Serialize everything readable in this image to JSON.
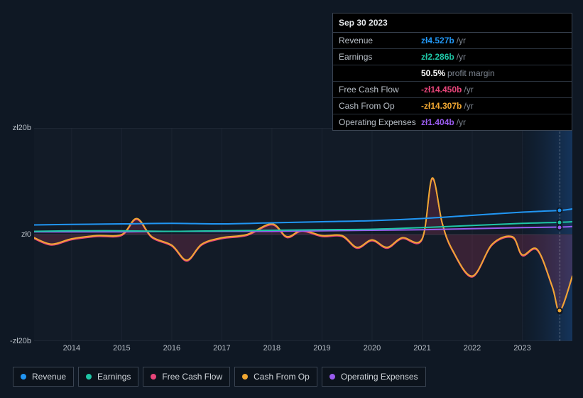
{
  "tooltip": {
    "date": "Sep 30 2023",
    "rows": [
      {
        "label": "Revenue",
        "value": "zł4.527b",
        "suffix": "/yr",
        "color": "#2196f3"
      },
      {
        "label": "Earnings",
        "value": "zł2.286b",
        "suffix": "/yr",
        "color": "#1fc6a6"
      },
      {
        "label": "",
        "value": "50.5%",
        "suffix": "profit margin",
        "color": "#ffffff"
      },
      {
        "label": "Free Cash Flow",
        "value": "-zł14.450b",
        "suffix": "/yr",
        "color": "#e8457a"
      },
      {
        "label": "Cash From Op",
        "value": "-zł14.307b",
        "suffix": "/yr",
        "color": "#f0a732"
      },
      {
        "label": "Operating Expenses",
        "value": "zł1.404b",
        "suffix": "/yr",
        "color": "#9a5cf0"
      }
    ]
  },
  "chart": {
    "type": "line-area",
    "background": "#0f1824",
    "plot_bg": "rgba(255,255,255,0.02)",
    "grid_color": "#2a3340",
    "axis_font_size": 11,
    "x": {
      "min": 2013.25,
      "max": 2024.0,
      "ticks": [
        2014,
        2015,
        2016,
        2017,
        2018,
        2019,
        2020,
        2021,
        2022,
        2023
      ]
    },
    "y": {
      "min": -20,
      "max": 20,
      "tick_positions": [
        -20,
        0,
        20
      ],
      "tick_labels": [
        "-zł20b",
        "zł0",
        "zł20b"
      ]
    },
    "highlight_band": {
      "from": 2023.0,
      "to": 2024.0
    },
    "marker_x": 2023.75,
    "series": [
      {
        "name": "Revenue",
        "color": "#2196f3",
        "line_width": 2,
        "fill_opacity": 0,
        "points": [
          [
            2013.25,
            1.8
          ],
          [
            2014,
            1.9
          ],
          [
            2015,
            2.0
          ],
          [
            2016,
            2.1
          ],
          [
            2017,
            2.0
          ],
          [
            2018,
            2.2
          ],
          [
            2019,
            2.4
          ],
          [
            2020,
            2.6
          ],
          [
            2021,
            3.0
          ],
          [
            2022,
            3.6
          ],
          [
            2023,
            4.2
          ],
          [
            2023.75,
            4.53
          ],
          [
            2024,
            4.8
          ]
        ]
      },
      {
        "name": "Earnings",
        "color": "#1fc6a6",
        "line_width": 2,
        "fill_opacity": 0,
        "points": [
          [
            2013.25,
            0.6
          ],
          [
            2014,
            0.7
          ],
          [
            2015,
            0.7
          ],
          [
            2016,
            0.6
          ],
          [
            2017,
            0.7
          ],
          [
            2018,
            0.8
          ],
          [
            2019,
            0.9
          ],
          [
            2020,
            1.0
          ],
          [
            2021,
            1.3
          ],
          [
            2022,
            1.7
          ],
          [
            2023,
            2.1
          ],
          [
            2023.75,
            2.29
          ],
          [
            2024,
            2.4
          ]
        ]
      },
      {
        "name": "Operating Expenses",
        "color": "#9a5cf0",
        "line_width": 2,
        "fill_opacity": 0,
        "points": [
          [
            2013.25,
            0.5
          ],
          [
            2014,
            0.5
          ],
          [
            2015,
            0.5
          ],
          [
            2016,
            0.6
          ],
          [
            2017,
            0.6
          ],
          [
            2018,
            0.6
          ],
          [
            2019,
            0.7
          ],
          [
            2020,
            0.8
          ],
          [
            2021,
            0.9
          ],
          [
            2022,
            1.1
          ],
          [
            2023,
            1.3
          ],
          [
            2023.75,
            1.4
          ],
          [
            2024,
            1.5
          ]
        ]
      },
      {
        "name": "Free Cash Flow",
        "color": "#e8457a",
        "line_width": 1.5,
        "fill_opacity": 0.18,
        "points": [
          [
            2013.25,
            -0.8
          ],
          [
            2013.6,
            -2.0
          ],
          [
            2014,
            -1.0
          ],
          [
            2014.5,
            -0.4
          ],
          [
            2015,
            -0.2
          ],
          [
            2015.3,
            2.8
          ],
          [
            2015.6,
            -0.6
          ],
          [
            2016,
            -2.2
          ],
          [
            2016.3,
            -5.0
          ],
          [
            2016.6,
            -2.0
          ],
          [
            2017,
            -0.8
          ],
          [
            2017.5,
            -0.2
          ],
          [
            2018,
            1.8
          ],
          [
            2018.3,
            -0.6
          ],
          [
            2018.6,
            0.6
          ],
          [
            2019,
            -0.4
          ],
          [
            2019.4,
            -0.4
          ],
          [
            2019.7,
            -2.6
          ],
          [
            2020,
            -1.2
          ],
          [
            2020.3,
            -2.6
          ],
          [
            2020.6,
            -0.8
          ],
          [
            2021,
            -1.0
          ],
          [
            2021.2,
            10.4
          ],
          [
            2021.4,
            2.0
          ],
          [
            2021.6,
            -3.0
          ],
          [
            2022,
            -8.0
          ],
          [
            2022.4,
            -2.0
          ],
          [
            2022.8,
            -0.6
          ],
          [
            2023,
            -4.0
          ],
          [
            2023.3,
            -3.0
          ],
          [
            2023.6,
            -10.0
          ],
          [
            2023.75,
            -14.45
          ],
          [
            2024,
            -8.0
          ]
        ]
      },
      {
        "name": "Cash From Op",
        "color": "#f0a732",
        "line_width": 2,
        "fill_opacity": 0,
        "points": [
          [
            2013.25,
            -0.6
          ],
          [
            2013.6,
            -1.8
          ],
          [
            2014,
            -0.8
          ],
          [
            2014.5,
            -0.2
          ],
          [
            2015,
            0.0
          ],
          [
            2015.3,
            3.0
          ],
          [
            2015.6,
            -0.4
          ],
          [
            2016,
            -2.0
          ],
          [
            2016.3,
            -4.8
          ],
          [
            2016.6,
            -1.8
          ],
          [
            2017,
            -0.6
          ],
          [
            2017.5,
            0.0
          ],
          [
            2018,
            2.0
          ],
          [
            2018.3,
            -0.4
          ],
          [
            2018.6,
            0.8
          ],
          [
            2019,
            -0.2
          ],
          [
            2019.4,
            -0.2
          ],
          [
            2019.7,
            -2.4
          ],
          [
            2020,
            -1.0
          ],
          [
            2020.3,
            -2.4
          ],
          [
            2020.6,
            -0.6
          ],
          [
            2021,
            -0.8
          ],
          [
            2021.2,
            10.6
          ],
          [
            2021.4,
            2.2
          ],
          [
            2021.6,
            -2.8
          ],
          [
            2022,
            -7.8
          ],
          [
            2022.4,
            -1.8
          ],
          [
            2022.8,
            -0.4
          ],
          [
            2023,
            -3.8
          ],
          [
            2023.3,
            -2.8
          ],
          [
            2023.6,
            -9.8
          ],
          [
            2023.75,
            -14.31
          ],
          [
            2024,
            -7.8
          ]
        ]
      }
    ],
    "legend": [
      {
        "label": "Revenue",
        "color": "#2196f3"
      },
      {
        "label": "Earnings",
        "color": "#1fc6a6"
      },
      {
        "label": "Free Cash Flow",
        "color": "#e8457a"
      },
      {
        "label": "Cash From Op",
        "color": "#f0a732"
      },
      {
        "label": "Operating Expenses",
        "color": "#9a5cf0"
      }
    ]
  }
}
